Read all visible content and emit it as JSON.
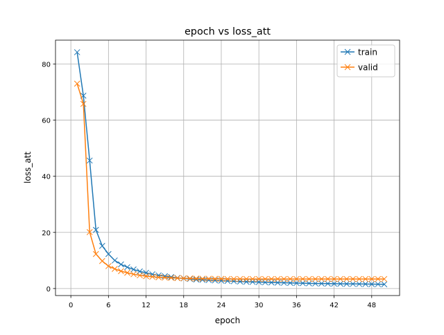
{
  "chart_data": {
    "type": "line",
    "title": "epoch vs loss_att",
    "xlabel": "epoch",
    "ylabel": "loss_att",
    "xlim": [
      -2.45,
      52.45
    ],
    "ylim": [
      -2.5,
      88.5
    ],
    "xticks": [
      0,
      6,
      12,
      18,
      24,
      30,
      36,
      42,
      48
    ],
    "yticks": [
      0,
      20,
      40,
      60,
      80
    ],
    "grid": true,
    "legend": "top-right",
    "marker": "x",
    "x": [
      1,
      2,
      3,
      4,
      5,
      6,
      7,
      8,
      9,
      10,
      11,
      12,
      13,
      14,
      15,
      16,
      17,
      18,
      19,
      20,
      21,
      22,
      23,
      24,
      25,
      26,
      27,
      28,
      29,
      30,
      31,
      32,
      33,
      34,
      35,
      36,
      37,
      38,
      39,
      40,
      41,
      42,
      43,
      44,
      45,
      46,
      47,
      48,
      49,
      50
    ],
    "series": [
      {
        "name": "train",
        "color": "#1f77b4",
        "values": [
          84.2,
          68.7,
          45.6,
          20.9,
          15.2,
          12.3,
          10.0,
          8.6,
          7.6,
          6.8,
          6.1,
          5.6,
          5.1,
          4.7,
          4.4,
          4.1,
          3.8,
          3.6,
          3.4,
          3.2,
          3.1,
          3.0,
          2.9,
          2.8,
          2.7,
          2.6,
          2.5,
          2.4,
          2.35,
          2.3,
          2.2,
          2.15,
          2.1,
          2.05,
          2.0,
          1.95,
          1.9,
          1.85,
          1.8,
          1.78,
          1.75,
          1.72,
          1.7,
          1.67,
          1.65,
          1.62,
          1.6,
          1.57,
          1.55,
          1.5
        ]
      },
      {
        "name": "valid",
        "color": "#ff7f0e",
        "values": [
          73.0,
          65.8,
          20.1,
          12.3,
          9.8,
          8.0,
          7.0,
          6.2,
          5.6,
          5.1,
          4.7,
          4.4,
          4.2,
          4.0,
          3.9,
          3.8,
          3.7,
          3.65,
          3.6,
          3.55,
          3.5,
          3.5,
          3.45,
          3.45,
          3.4,
          3.4,
          3.4,
          3.4,
          3.4,
          3.4,
          3.4,
          3.4,
          3.4,
          3.4,
          3.4,
          3.4,
          3.4,
          3.4,
          3.4,
          3.4,
          3.4,
          3.4,
          3.4,
          3.4,
          3.4,
          3.4,
          3.4,
          3.4,
          3.4,
          3.4
        ]
      }
    ]
  }
}
